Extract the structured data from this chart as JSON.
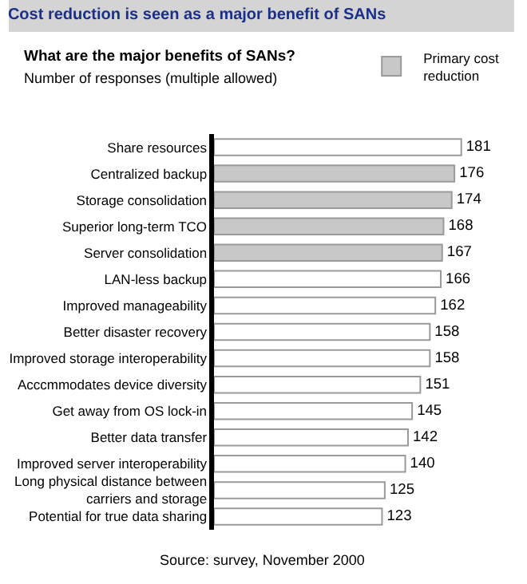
{
  "chart_data": {
    "type": "bar",
    "orientation": "horizontal",
    "title": "Cost reduction is seen as a major benefit of SANs",
    "subtitle": "What are the major benefits of SANs?",
    "xlabel": "Number of responses (multiple allowed)",
    "categories": [
      "Share resources",
      "Centralized backup",
      "Storage consolidation",
      "Superior long-term TCO",
      "Server consolidation",
      "LAN-less backup",
      "Improved manageability",
      "Better disaster recovery",
      "Improved storage interoperability",
      "Acccmmodates device diversity",
      "Get away from OS lock-in",
      "Better data transfer",
      "Improved server interoperability",
      "Long physical distance between\ncarriers and storage",
      "Potential for true data sharing"
    ],
    "series": [
      {
        "color": "#ffffff",
        "values": [
          181,
          null,
          null,
          null,
          null,
          166,
          162,
          158,
          158,
          151,
          145,
          142,
          140,
          125,
          123
        ]
      },
      {
        "name": "Primary cost reduction",
        "color": "#c8c8c8",
        "values": [
          null,
          176,
          174,
          168,
          167,
          null,
          null,
          null,
          null,
          null,
          null,
          null,
          null,
          null,
          null
        ]
      }
    ],
    "tick_labels": "y",
    "data_labels": true,
    "legend": "top right",
    "annotations": [
      "Source: survey, November 2000"
    ]
  }
}
